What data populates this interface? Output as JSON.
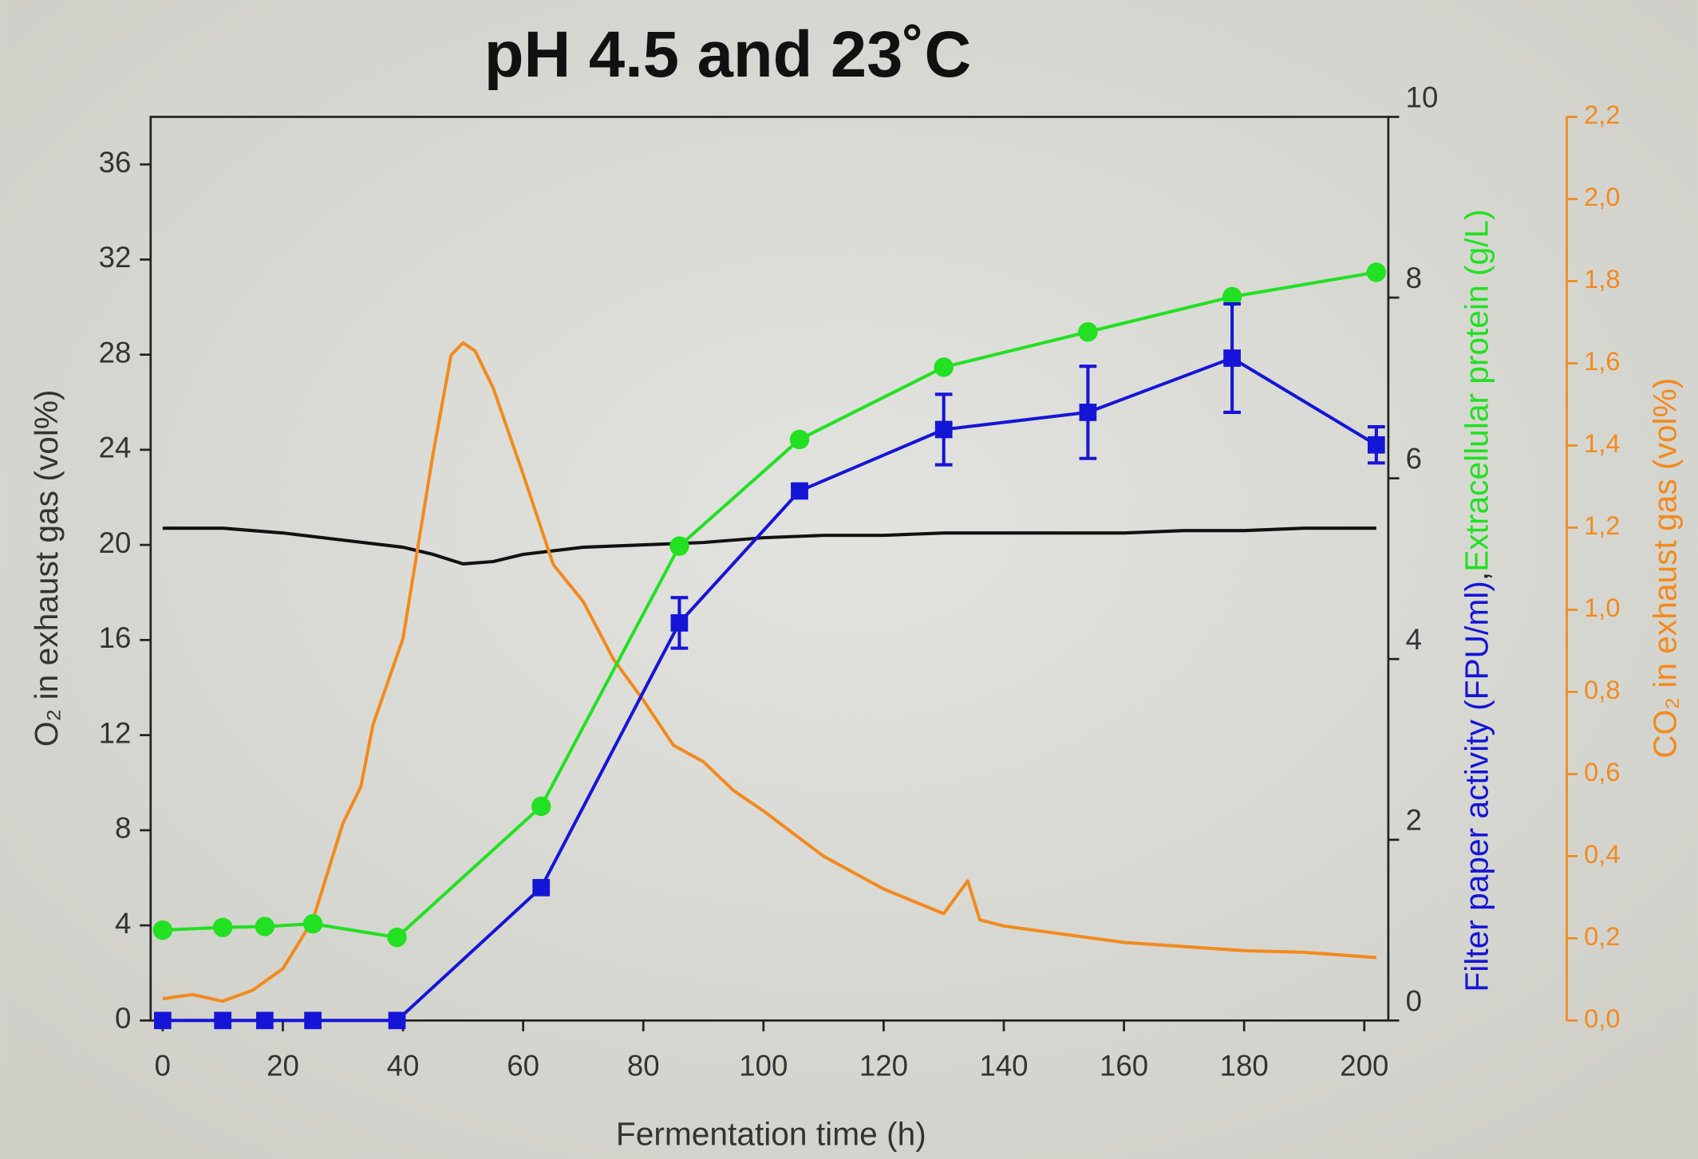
{
  "chart_data": {
    "type": "line",
    "title": "pH 4.5 and 23˚C",
    "xlabel": "Fermentation time (h)",
    "ylabel": "O₂ in exhaust gas (vol%)",
    "y2label_parts": [
      "Filter paper activity (FPU/ml)",
      ",",
      "Extracellular protein (g/L)"
    ],
    "y2label_colors": [
      "#1515d8",
      "#222222",
      "#22e022"
    ],
    "y3label": "CO₂ in exhaust gas (vol%)",
    "y3color": "#f28a1e",
    "xlim": [
      -2,
      204
    ],
    "xticks": [
      0,
      20,
      40,
      60,
      80,
      100,
      120,
      140,
      160,
      180,
      200
    ],
    "ylim": [
      0,
      38
    ],
    "yticks": [
      0,
      4,
      8,
      12,
      16,
      20,
      24,
      28,
      32,
      36
    ],
    "y2lim": [
      0,
      10
    ],
    "y2ticks": [
      0,
      2,
      4,
      6,
      8,
      10
    ],
    "y3lim": [
      0,
      2.2
    ],
    "y3ticks": [
      {
        "value": 0,
        "label": "0,0"
      },
      {
        "value": 0.2,
        "label": "0,2"
      },
      {
        "value": 0.4,
        "label": "0,4"
      },
      {
        "value": 0.6,
        "label": "0,6"
      },
      {
        "value": 0.8,
        "label": "0,8"
      },
      {
        "value": 1.0,
        "label": "1,0"
      },
      {
        "value": 1.2,
        "label": "1,2"
      },
      {
        "value": 1.4,
        "label": "1,4"
      },
      {
        "value": 1.6,
        "label": "1,6"
      },
      {
        "value": 1.8,
        "label": "1,8"
      },
      {
        "value": 2.0,
        "label": "2,0"
      },
      {
        "value": 2.2,
        "label": "2,2"
      }
    ],
    "series": [
      {
        "color": "#111111",
        "axis": "y",
        "marker": "none",
        "x": [
          0,
          10,
          20,
          30,
          40,
          45,
          50,
          55,
          60,
          70,
          80,
          90,
          100,
          110,
          120,
          130,
          140,
          150,
          160,
          170,
          180,
          190,
          202
        ],
        "values": [
          20.7,
          20.7,
          20.5,
          20.2,
          19.9,
          19.6,
          19.2,
          19.3,
          19.6,
          19.9,
          20.0,
          20.1,
          20.3,
          20.4,
          20.4,
          20.5,
          20.5,
          20.5,
          20.5,
          20.6,
          20.6,
          20.7,
          20.7
        ]
      },
      {
        "color": "#f28a1e",
        "axis": "y3",
        "marker": "none",
        "x": [
          0,
          5,
          10,
          15,
          20,
          25,
          30,
          33,
          35,
          40,
          45,
          48,
          50,
          52,
          55,
          60,
          65,
          70,
          75,
          80,
          85,
          90,
          95,
          100,
          110,
          120,
          130,
          134,
          136,
          140,
          150,
          160,
          170,
          180,
          190,
          202
        ],
        "values": [
          0.053,
          0.063,
          0.047,
          0.074,
          0.126,
          0.245,
          0.48,
          0.57,
          0.72,
          0.93,
          1.38,
          1.62,
          1.65,
          1.63,
          1.54,
          1.33,
          1.11,
          1.02,
          0.88,
          0.78,
          0.67,
          0.63,
          0.56,
          0.51,
          0.4,
          0.32,
          0.26,
          0.34,
          0.245,
          0.23,
          0.21,
          0.19,
          0.18,
          0.17,
          0.166,
          0.153
        ]
      },
      {
        "color": "#22e022",
        "axis": "y2",
        "marker": "circle",
        "x": [
          0,
          10,
          17,
          25,
          39,
          63,
          86,
          106,
          130,
          154,
          178,
          202
        ],
        "values": [
          1.0,
          1.03,
          1.04,
          1.07,
          0.92,
          2.37,
          5.25,
          6.43,
          7.23,
          7.62,
          8.01,
          8.28
        ]
      },
      {
        "color": "#1515d8",
        "axis": "y2",
        "marker": "square",
        "x": [
          0,
          10,
          17,
          25,
          39,
          63,
          86,
          106,
          130,
          154,
          178,
          202
        ],
        "values": [
          0,
          0,
          0,
          0,
          0,
          1.47,
          4.4,
          5.86,
          6.54,
          6.73,
          7.33,
          6.37
        ],
        "errors": [
          0,
          0,
          0,
          0,
          0,
          0.05,
          0.28,
          0.05,
          0.39,
          0.51,
          0.6,
          0.2
        ]
      }
    ]
  }
}
